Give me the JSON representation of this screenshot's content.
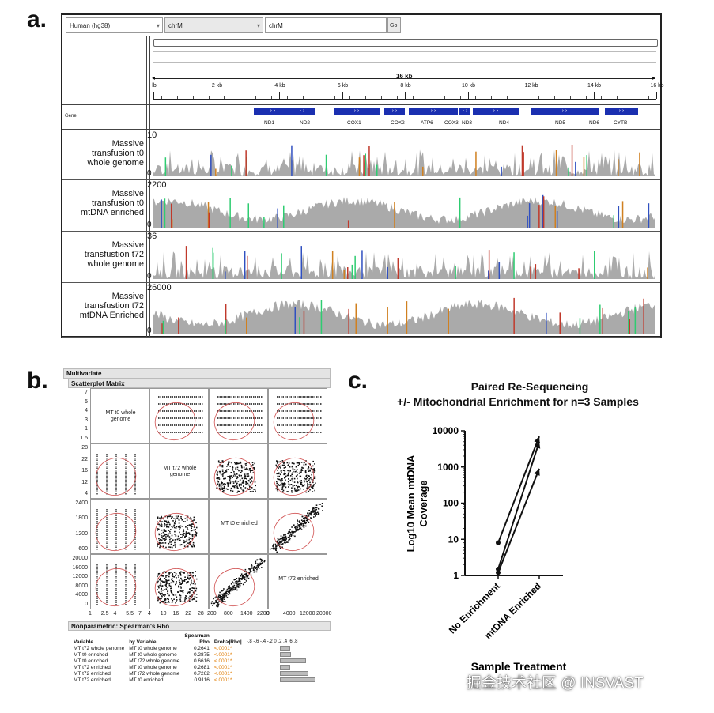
{
  "panels": {
    "a": "a.",
    "b": "b.",
    "c": "c."
  },
  "igv": {
    "genome_select": "Human (hg38)",
    "chrom_select": "chrM",
    "locus_input": "chrM",
    "go_button": "Go",
    "span_label": "16 kb",
    "scale_ticks": [
      "lb",
      "2 kb",
      "4 kb",
      "6 kb",
      "8 kb",
      "10 kb",
      "12 kb",
      "14 kb",
      "16 kb"
    ],
    "gene_track_label": "Gene",
    "genes": [
      "ND1",
      "ND2",
      "COX1",
      "COX2",
      "ATP6",
      "COX3",
      "ND3",
      "ND4",
      "ND5",
      "ND6",
      "CYTB"
    ],
    "tracks": [
      {
        "label_lines": [
          "Massive",
          "transfusion t0",
          "whole genome"
        ],
        "max": "10",
        "min": "0"
      },
      {
        "label_lines": [
          "Massive",
          "transfusion t0",
          "mtDNA enriched"
        ],
        "max": "2200",
        "min": "0"
      },
      {
        "label_lines": [
          "Massive",
          "transfustion t72",
          "whole genome"
        ],
        "max": "36",
        "min": "0"
      },
      {
        "label_lines": [
          "Massive",
          "transfustion t72",
          "mtDNA Enriched"
        ],
        "max": "26000",
        "min": "0"
      }
    ],
    "colors": {
      "coverage": "#aaaaaa",
      "gene": "#1a2fb0"
    }
  },
  "jmp": {
    "multivariate": "Multivariate",
    "scatter_title": "Scatterplot Matrix",
    "diag_labels": [
      "MT t0 whole genome",
      "MT t72 whole genome",
      "MT t0 enriched",
      "MT t72 enriched"
    ],
    "row_ticks": [
      [
        "7",
        "5",
        "4",
        "3",
        "1",
        "1.5"
      ],
      [
        "28",
        "22",
        "16",
        "12",
        "4"
      ],
      [
        "2400",
        "1800",
        "1200",
        "600"
      ],
      [
        "20000",
        "16000",
        "12000",
        "8000",
        "4000",
        "0"
      ]
    ],
    "col_ticks": [
      [
        "1",
        "2.5",
        "4",
        "5.5",
        "7"
      ],
      [
        "4",
        "10",
        "16",
        "22",
        "28"
      ],
      [
        "200",
        "800",
        "1400",
        "2200"
      ],
      [
        "0",
        "4000",
        "12000",
        "20000"
      ]
    ],
    "np_title": "Nonparametric: Spearman's Rho",
    "table_headers": {
      "variable": "Variable",
      "by_variable": "by Variable",
      "spearman": "Spearman",
      "rho": "Rho",
      "prob": "Prob>|Rho|",
      "bar_ticks": "-.8 -.6 -.4 -.2  0  .2  .4  .6  .8"
    },
    "rows": [
      {
        "var": "MT t72 whole genome",
        "by": "MT t0 whole genome",
        "rho": "0.2641",
        "p": "<.0001*"
      },
      {
        "var": "MT t0 enriched",
        "by": "MT t0 whole genome",
        "rho": "0.2875",
        "p": "<.0001*"
      },
      {
        "var": "MT t0 enriched",
        "by": "MT t72 whole genome",
        "rho": "0.6616",
        "p": "<.0001*"
      },
      {
        "var": "MT t72 enriched",
        "by": "MT t0 whole genome",
        "rho": "0.2681",
        "p": "<.0001*"
      },
      {
        "var": "MT t72 enriched",
        "by": "MT t72 whole genome",
        "rho": "0.7262",
        "p": "<.0001*"
      },
      {
        "var": "MT t72 enriched",
        "by": "MT t0 enriched",
        "rho": "0.9116",
        "p": "<.0001*"
      }
    ],
    "colors": {
      "pvalue": "#e07b00",
      "ellipse": "#d05050"
    }
  },
  "chart_data": {
    "type": "line",
    "title": "Paired Re-Sequencing",
    "subtitle": "+/- Mitochondrial Enrichment for n=3 Samples",
    "xlabel": "Sample Treatment",
    "ylabel": "Log10 Mean mtDNA Coverage",
    "ylabel_lines": [
      "Log10 Mean mtDNA",
      "Coverage"
    ],
    "yscale": "log",
    "ylim": [
      1,
      10000
    ],
    "yticks": [
      "1",
      "10",
      "100",
      "1000",
      "10000"
    ],
    "categories": [
      "No Enrichment",
      "mtDNA Enriched"
    ],
    "series": [
      {
        "values": [
          8,
          7000
        ]
      },
      {
        "values": [
          1.5,
          5000
        ]
      },
      {
        "values": [
          1.2,
          900
        ]
      }
    ]
  },
  "watermark": "掘金技术社区 @ INSVAST"
}
